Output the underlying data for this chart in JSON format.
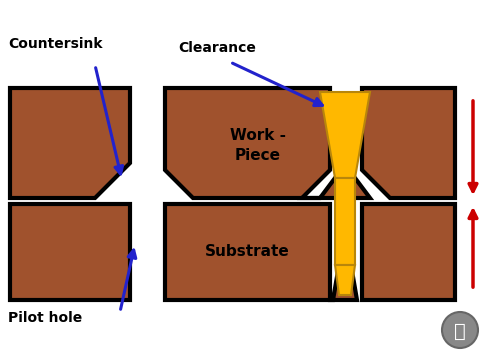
{
  "wood_color": "#A0522D",
  "outline_color": "#000000",
  "yellow_color": "#FFB800",
  "yellow_outline": "#B8860B",
  "blue_arrow_color": "#2222CC",
  "red_arrow_color": "#CC0000",
  "bg_color": "#FFFFFF",
  "label_countersink": "Countersink",
  "label_clearance": "Clearance",
  "label_pilot": "Pilot hole",
  "lw": 3.0,
  "fig_w": 4.93,
  "fig_h": 3.52,
  "dpi": 100
}
